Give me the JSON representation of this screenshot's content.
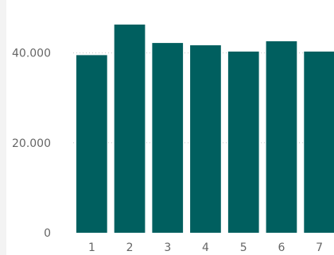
{
  "chart_data": {
    "type": "bar",
    "categories": [
      "1",
      "2",
      "3",
      "4",
      "5",
      "6",
      "7"
    ],
    "values": [
      39500,
      46300,
      42200,
      41700,
      40300,
      42600,
      40300
    ],
    "yticks": [
      0,
      20000,
      40000
    ],
    "ytick_labels": [
      "0",
      "20.000",
      "40.000"
    ],
    "ylim": [
      0,
      50000
    ],
    "grid": true,
    "legend": "none",
    "colors": {
      "bar": "#005f5f",
      "grid": "#c8c8c8",
      "text": "#666666"
    }
  }
}
